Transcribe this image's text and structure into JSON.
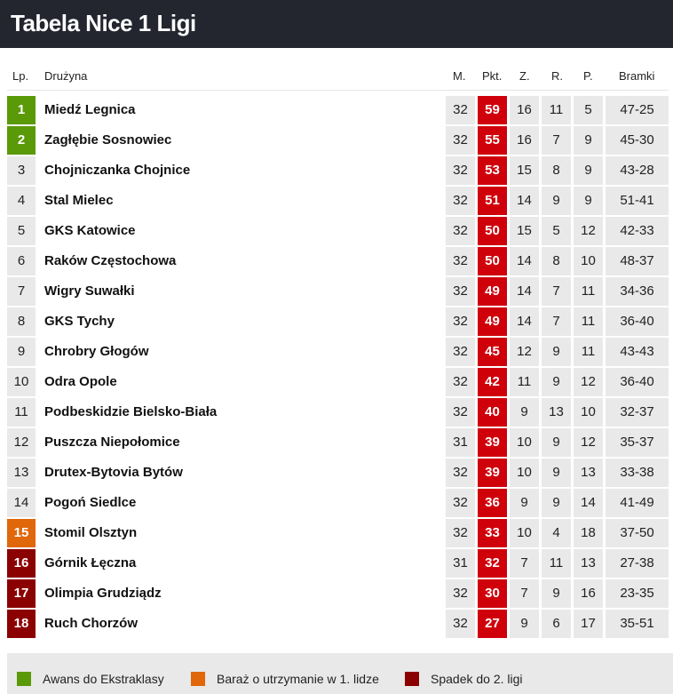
{
  "title": "Tabela Nice 1 Ligi",
  "headers": {
    "lp": "Lp.",
    "team": "Drużyna",
    "m": "M.",
    "pkt": "Pkt.",
    "z": "Z.",
    "r": "R.",
    "p": "P.",
    "goals": "Bramki"
  },
  "colors": {
    "promotion": "#5a9a08",
    "playoff": "#e0670a",
    "relegation": "#8b0000",
    "points": "#d0000b",
    "default": "#e9e9e9"
  },
  "rows": [
    {
      "pos": "1",
      "team": "Miedź Legnica",
      "m": "32",
      "pkt": "59",
      "z": "16",
      "r": "11",
      "p": "5",
      "goals": "47-25",
      "zone": "promotion"
    },
    {
      "pos": "2",
      "team": "Zagłębie Sosnowiec",
      "m": "32",
      "pkt": "55",
      "z": "16",
      "r": "7",
      "p": "9",
      "goals": "45-30",
      "zone": "promotion"
    },
    {
      "pos": "3",
      "team": "Chojniczanka Chojnice",
      "m": "32",
      "pkt": "53",
      "z": "15",
      "r": "8",
      "p": "9",
      "goals": "43-28",
      "zone": ""
    },
    {
      "pos": "4",
      "team": "Stal Mielec",
      "m": "32",
      "pkt": "51",
      "z": "14",
      "r": "9",
      "p": "9",
      "goals": "51-41",
      "zone": ""
    },
    {
      "pos": "5",
      "team": "GKS Katowice",
      "m": "32",
      "pkt": "50",
      "z": "15",
      "r": "5",
      "p": "12",
      "goals": "42-33",
      "zone": ""
    },
    {
      "pos": "6",
      "team": "Raków Częstochowa",
      "m": "32",
      "pkt": "50",
      "z": "14",
      "r": "8",
      "p": "10",
      "goals": "48-37",
      "zone": ""
    },
    {
      "pos": "7",
      "team": "Wigry Suwałki",
      "m": "32",
      "pkt": "49",
      "z": "14",
      "r": "7",
      "p": "11",
      "goals": "34-36",
      "zone": ""
    },
    {
      "pos": "8",
      "team": "GKS Tychy",
      "m": "32",
      "pkt": "49",
      "z": "14",
      "r": "7",
      "p": "11",
      "goals": "36-40",
      "zone": ""
    },
    {
      "pos": "9",
      "team": "Chrobry Głogów",
      "m": "32",
      "pkt": "45",
      "z": "12",
      "r": "9",
      "p": "11",
      "goals": "43-43",
      "zone": ""
    },
    {
      "pos": "10",
      "team": "Odra Opole",
      "m": "32",
      "pkt": "42",
      "z": "11",
      "r": "9",
      "p": "12",
      "goals": "36-40",
      "zone": ""
    },
    {
      "pos": "11",
      "team": "Podbeskidzie Bielsko-Biała",
      "m": "32",
      "pkt": "40",
      "z": "9",
      "r": "13",
      "p": "10",
      "goals": "32-37",
      "zone": ""
    },
    {
      "pos": "12",
      "team": "Puszcza Niepołomice",
      "m": "31",
      "pkt": "39",
      "z": "10",
      "r": "9",
      "p": "12",
      "goals": "35-37",
      "zone": ""
    },
    {
      "pos": "13",
      "team": "Drutex-Bytovia Bytów",
      "m": "32",
      "pkt": "39",
      "z": "10",
      "r": "9",
      "p": "13",
      "goals": "33-38",
      "zone": ""
    },
    {
      "pos": "14",
      "team": "Pogoń Siedlce",
      "m": "32",
      "pkt": "36",
      "z": "9",
      "r": "9",
      "p": "14",
      "goals": "41-49",
      "zone": ""
    },
    {
      "pos": "15",
      "team": "Stomil Olsztyn",
      "m": "32",
      "pkt": "33",
      "z": "10",
      "r": "4",
      "p": "18",
      "goals": "37-50",
      "zone": "playoff"
    },
    {
      "pos": "16",
      "team": "Górnik Łęczna",
      "m": "31",
      "pkt": "32",
      "z": "7",
      "r": "11",
      "p": "13",
      "goals": "27-38",
      "zone": "relegation"
    },
    {
      "pos": "17",
      "team": "Olimpia Grudziądz",
      "m": "32",
      "pkt": "30",
      "z": "7",
      "r": "9",
      "p": "16",
      "goals": "23-35",
      "zone": "relegation"
    },
    {
      "pos": "18",
      "team": "Ruch Chorzów",
      "m": "32",
      "pkt": "27",
      "z": "9",
      "r": "6",
      "p": "17",
      "goals": "35-51",
      "zone": "relegation"
    }
  ],
  "legend": [
    {
      "label": "Awans do Ekstraklasy",
      "zone": "promotion"
    },
    {
      "label": "Baraż o utrzymanie w 1. lidze",
      "zone": "playoff"
    },
    {
      "label": "Spadek do 2. ligi",
      "zone": "relegation"
    }
  ]
}
